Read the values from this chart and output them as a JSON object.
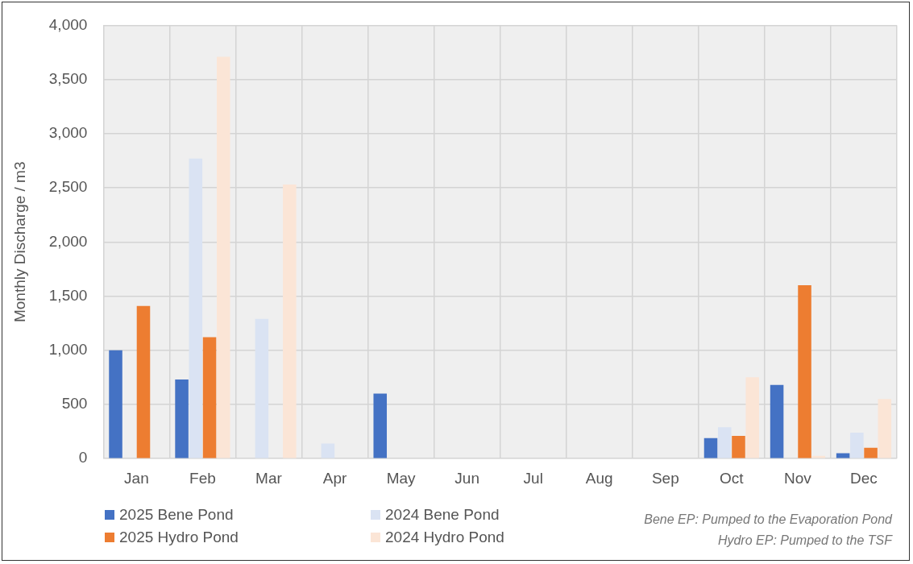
{
  "chart_data": {
    "type": "bar",
    "ylabel": "Monthly Discharge / m3",
    "categories": [
      "Jan",
      "Feb",
      "Mar",
      "Apr",
      "May",
      "Jun",
      "Jul",
      "Aug",
      "Sep",
      "Oct",
      "Nov",
      "Dec"
    ],
    "series": [
      {
        "name": "2025 Bene Pond",
        "color": "#4472c4",
        "values": [
          1000,
          730,
          null,
          null,
          600,
          null,
          null,
          null,
          null,
          190,
          680,
          50
        ]
      },
      {
        "name": "2024 Bene Pond",
        "color": "#dae3f3",
        "values": [
          null,
          2770,
          1290,
          140,
          null,
          null,
          null,
          null,
          null,
          290,
          null,
          240
        ]
      },
      {
        "name": "2025 Hydro Pond",
        "color": "#ed7d31",
        "values": [
          1410,
          1120,
          null,
          null,
          null,
          null,
          null,
          null,
          null,
          210,
          1600,
          100
        ]
      },
      {
        "name": "2024 Hydro Pond",
        "color": "#fbe5d6",
        "values": [
          null,
          3710,
          2530,
          null,
          null,
          null,
          null,
          null,
          null,
          750,
          25,
          550
        ]
      }
    ],
    "ylim": [
      0,
      4000
    ],
    "yticks": [
      0,
      500,
      {
        "value": 1000,
        "label": "1,000"
      },
      {
        "value": 1500,
        "label": "1,500"
      },
      {
        "value": 2000,
        "label": "2,000"
      },
      {
        "value": 2500,
        "label": "2,500"
      },
      {
        "value": 3000,
        "label": "3,000"
      },
      {
        "value": 3500,
        "label": "3,500"
      },
      {
        "value": 4000,
        "label": "4,000"
      }
    ],
    "grid": true,
    "legend": "bottom",
    "annotations": [
      "Bene EP: Pumped to the Evaporation Pond",
      "Hydro EP: Pumped to the TSF"
    ]
  }
}
